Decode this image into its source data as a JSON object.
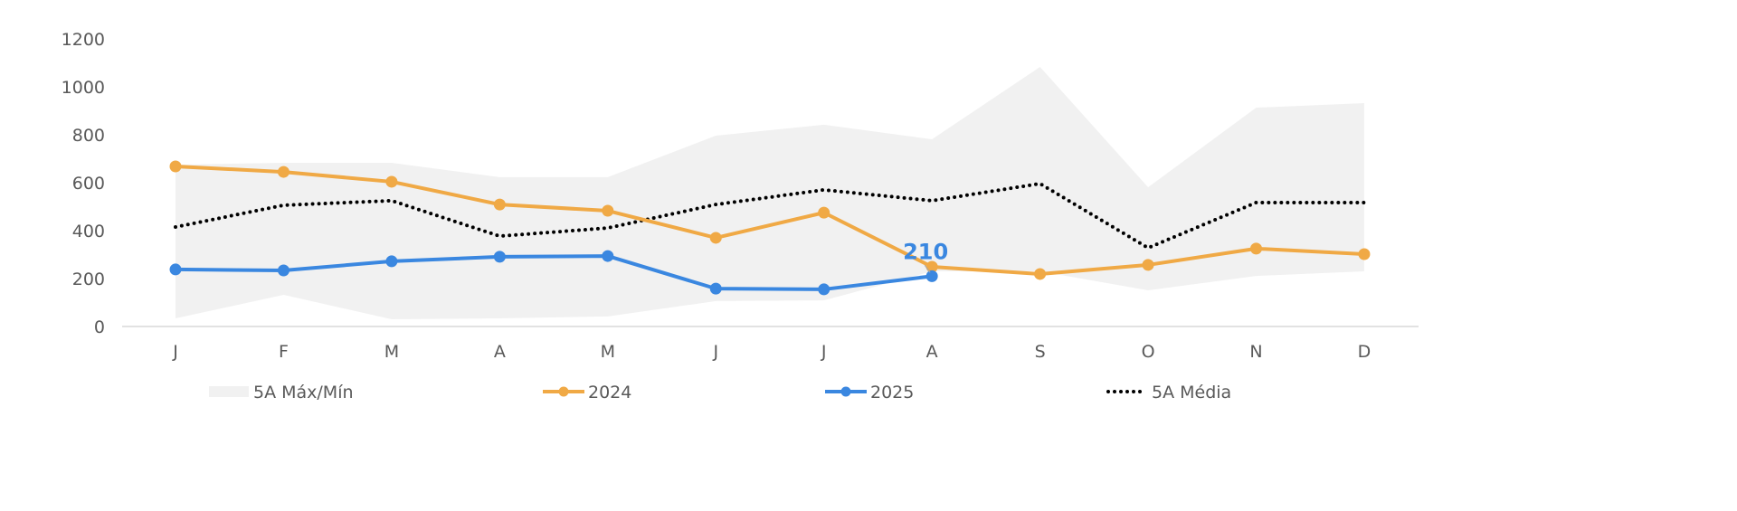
{
  "chart_data": {
    "type": "line",
    "title": "",
    "xlabel": "",
    "ylabel": "",
    "ylim": [
      0,
      1200
    ],
    "yticks": [
      "0",
      "200",
      "400",
      "600",
      "800",
      "1000",
      "1200"
    ],
    "categories": [
      "J",
      "F",
      "M",
      "A",
      "M",
      "J",
      "J",
      "A",
      "S",
      "O",
      "N",
      "D"
    ],
    "band": {
      "name": "5A Máx/Mín",
      "color": "#f1f1f1",
      "max": [
        675,
        683,
        683,
        623,
        623,
        796,
        842,
        781,
        1083,
        581,
        913,
        932
      ],
      "min": [
        34,
        132,
        30,
        34,
        42,
        106,
        109,
        230,
        230,
        151,
        211,
        230
      ]
    },
    "series": [
      {
        "name": "2024",
        "color": "#f0a945",
        "values": [
          668,
          645,
          604,
          509,
          483,
          370,
          475,
          249,
          219,
          257,
          325,
          302
        ]
      },
      {
        "name": "2025",
        "color": "#3a87e0",
        "values": [
          238,
          234,
          272,
          291,
          294,
          158,
          155,
          210,
          null,
          null,
          null,
          null
        ]
      },
      {
        "name": "5A Média",
        "color": "#000000",
        "style": "dotted",
        "values": [
          415,
          506,
          525,
          377,
          411,
          509,
          570,
          525,
          596,
          328,
          517,
          517
        ]
      }
    ],
    "annotations": [
      {
        "series": "2025",
        "category_index": 7,
        "text": "210"
      }
    ],
    "grid": false,
    "legend": "bottom"
  }
}
